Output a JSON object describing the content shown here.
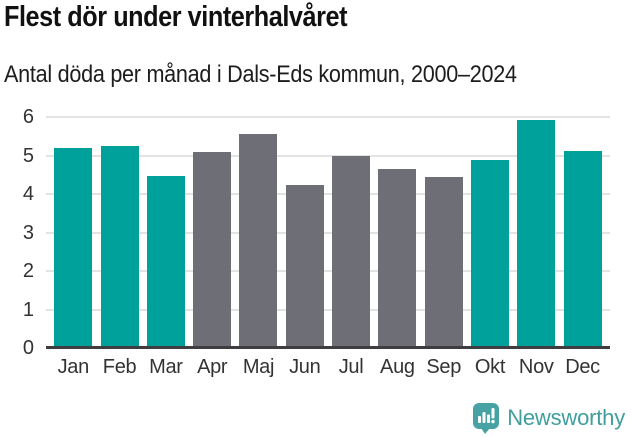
{
  "header": {
    "title": "Flest dör under vinterhalvåret",
    "subtitle": "Antal döda per månad i Dals-Eds kommun, 2000–2024"
  },
  "chart_data": {
    "type": "bar",
    "title": "Flest dör under vinterhalvåret",
    "subtitle": "Antal döda per månad i Dals-Eds kommun, 2000–2024",
    "categories": [
      "Jan",
      "Feb",
      "Mar",
      "Apr",
      "Maj",
      "Jun",
      "Jul",
      "Aug",
      "Sep",
      "Okt",
      "Nov",
      "Dec"
    ],
    "values": [
      5.2,
      5.24,
      4.48,
      5.08,
      5.56,
      4.24,
      5.0,
      4.64,
      4.44,
      4.88,
      5.92,
      5.12
    ],
    "highlight_months": [
      "Jan",
      "Feb",
      "Mar",
      "Okt",
      "Nov",
      "Dec"
    ],
    "colors": {
      "highlight": "#00a19a",
      "default": "#6e6e76"
    },
    "xlabel": "",
    "ylabel": "",
    "ylim": [
      0,
      6
    ],
    "yticks": [
      0,
      1,
      2,
      3,
      4,
      5,
      6
    ],
    "grid": "horizontal",
    "legend": "none",
    "axis_color": "#3d3d42",
    "grid_color": "#e3e3e3",
    "tick_label_color": "#333333"
  },
  "footer": {
    "brand": "Newsworthy",
    "logo_icon": "bar-chart-speech-bubble-icon",
    "brand_color": "#3f9e9e",
    "bubble_color": "#47a3a3"
  }
}
